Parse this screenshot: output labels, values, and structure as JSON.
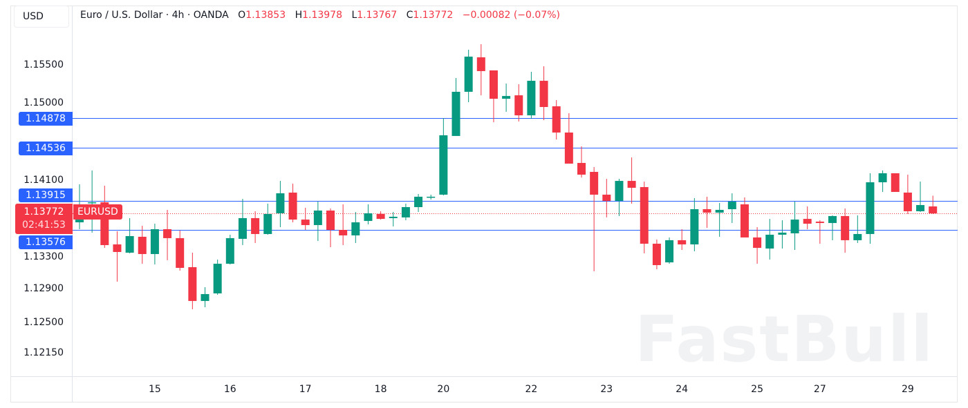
{
  "currency_button": "USD",
  "legend": {
    "symbol_desc": "Euro / U.S. Dollar · 4h · OANDA",
    "open_label": "O",
    "open": "1.13853",
    "high_label": "H",
    "high": "1.13978",
    "low_label": "L",
    "low": "1.13767",
    "close_label": "C",
    "close": "1.13772",
    "change": "−0.00082 (−0.07%)"
  },
  "price_axis": {
    "ticks": [
      "1.15500",
      "1.15000",
      "1.14100",
      "1.13300",
      "1.12900",
      "1.12500",
      "1.12150"
    ]
  },
  "horizontal_lines": [
    {
      "label": "1.14878",
      "price": 1.14878
    },
    {
      "label": "1.14536",
      "price": 1.14536
    },
    {
      "label": "1.13915",
      "price": 1.13915
    },
    {
      "label": "1.13576",
      "price": 1.13576
    }
  ],
  "current_price": {
    "label": "1.13772",
    "price": 1.13772,
    "countdown": "02:41:53",
    "symbol": "EURUSD"
  },
  "watermark": "FastBull",
  "colors": {
    "up": "#089981",
    "down": "#f23645",
    "line": "#2962ff",
    "text": "#131722"
  },
  "chart_data": {
    "type": "candlestick",
    "title": "Euro / U.S. Dollar · 4h · OANDA",
    "ylim": [
      1.118,
      1.1628
    ],
    "grid": false,
    "x_ticks": [
      {
        "label": "15",
        "candle": 6
      },
      {
        "label": "16",
        "candle": 12
      },
      {
        "label": "17",
        "candle": 18
      },
      {
        "label": "18",
        "candle": 24
      },
      {
        "label": "20",
        "candle": 29
      },
      {
        "label": "22",
        "candle": 36
      },
      {
        "label": "23",
        "candle": 42
      },
      {
        "label": "24",
        "candle": 48
      },
      {
        "label": "25",
        "candle": 54
      },
      {
        "label": "27",
        "candle": 59
      },
      {
        "label": "29",
        "candle": 66
      }
    ],
    "ohlc": [
      [
        1.13668,
        1.1411,
        1.13588,
        1.137
      ],
      [
        1.13893,
        1.14271,
        1.13548,
        1.13901
      ],
      [
        1.13901,
        1.14094,
        1.13371,
        1.13403
      ],
      [
        1.13411,
        1.13564,
        1.12978,
        1.13323
      ],
      [
        1.13315,
        1.13717,
        1.13307,
        1.13508
      ],
      [
        1.135,
        1.13628,
        1.13186,
        1.13299
      ],
      [
        1.13299,
        1.13652,
        1.13178,
        1.13588
      ],
      [
        1.13588,
        1.13813,
        1.13227,
        1.13484
      ],
      [
        1.13484,
        1.13572,
        1.13106,
        1.13138
      ],
      [
        1.13146,
        1.13315,
        1.12656,
        1.12753
      ],
      [
        1.12753,
        1.12913,
        1.1268,
        1.12833
      ],
      [
        1.12841,
        1.13235,
        1.12825,
        1.13186
      ],
      [
        1.13186,
        1.13524,
        1.13178,
        1.13484
      ],
      [
        1.13476,
        1.13941,
        1.13403,
        1.13717
      ],
      [
        1.13717,
        1.13797,
        1.13427,
        1.13532
      ],
      [
        1.13532,
        1.13885,
        1.13524,
        1.13765
      ],
      [
        1.13773,
        1.1415,
        1.13612,
        1.14006
      ],
      [
        1.14014,
        1.14118,
        1.13668,
        1.137
      ],
      [
        1.137,
        1.13837,
        1.1358,
        1.13636
      ],
      [
        1.13636,
        1.13909,
        1.13451,
        1.13805
      ],
      [
        1.13805,
        1.13829,
        1.13379,
        1.1358
      ],
      [
        1.1358,
        1.13877,
        1.13403,
        1.13516
      ],
      [
        1.13516,
        1.13789,
        1.13427,
        1.13668
      ],
      [
        1.13684,
        1.13877,
        1.13644,
        1.13773
      ],
      [
        1.13765,
        1.13797,
        1.137,
        1.13708
      ],
      [
        1.13717,
        1.13789,
        1.1362,
        1.13733
      ],
      [
        1.13725,
        1.13885,
        1.13692,
        1.13845
      ],
      [
        1.13845,
        1.13998,
        1.13789,
        1.13966
      ],
      [
        1.13958,
        1.1399,
        1.13933,
        1.13966
      ],
      [
        1.1399,
        1.14881,
        1.13982,
        1.14681
      ],
      [
        1.14673,
        1.15347,
        1.14673,
        1.15187
      ],
      [
        1.15187,
        1.15677,
        1.15066,
        1.15596
      ],
      [
        1.15588,
        1.15741,
        1.15146,
        1.15428
      ],
      [
        1.15436,
        1.15436,
        1.14833,
        1.15106
      ],
      [
        1.15106,
        1.15283,
        1.14954,
        1.15138
      ],
      [
        1.15146,
        1.15275,
        1.14841,
        1.14913
      ],
      [
        1.14913,
        1.1542,
        1.14873,
        1.15315
      ],
      [
        1.15315,
        1.15484,
        1.14857,
        1.1501
      ],
      [
        1.15018,
        1.1509,
        1.14632,
        1.14713
      ],
      [
        1.14713,
        1.14938,
        1.14351,
        1.14351
      ],
      [
        1.14359,
        1.14552,
        1.1419,
        1.14223
      ],
      [
        1.14255,
        1.14311,
        1.13098,
        1.1399
      ],
      [
        1.1399,
        1.14174,
        1.13725,
        1.13917
      ],
      [
        1.13917,
        1.14174,
        1.13741,
        1.1415
      ],
      [
        1.1415,
        1.14423,
        1.13885,
        1.1407
      ],
      [
        1.14078,
        1.14142,
        1.13307,
        1.13419
      ],
      [
        1.13419,
        1.13468,
        1.13122,
        1.1317
      ],
      [
        1.13202,
        1.13492,
        1.13186,
        1.1346
      ],
      [
        1.1346,
        1.13588,
        1.13347,
        1.13411
      ],
      [
        1.13411,
        1.1395,
        1.13331,
        1.13821
      ],
      [
        1.13821,
        1.13966,
        1.13604,
        1.13781
      ],
      [
        1.13781,
        1.13893,
        1.135,
        1.13813
      ],
      [
        1.13821,
        1.14006,
        1.1366,
        1.13909
      ],
      [
        1.13877,
        1.13958,
        1.13492,
        1.13492
      ],
      [
        1.13492,
        1.13612,
        1.13186,
        1.13371
      ],
      [
        1.13363,
        1.13708,
        1.13235,
        1.13524
      ],
      [
        1.13524,
        1.13692,
        1.13363,
        1.13548
      ],
      [
        1.1354,
        1.13909,
        1.13347,
        1.137
      ],
      [
        1.13708,
        1.13853,
        1.13588,
        1.13652
      ],
      [
        1.13676,
        1.13692,
        1.13419,
        1.1366
      ],
      [
        1.1366,
        1.13749,
        1.1346,
        1.13741
      ],
      [
        1.13741,
        1.13829,
        1.13315,
        1.1346
      ],
      [
        1.1346,
        1.13749,
        1.13427,
        1.13532
      ],
      [
        1.13532,
        1.14239,
        1.13419,
        1.14134
      ],
      [
        1.14134,
        1.14271,
        1.14022,
        1.14239
      ],
      [
        1.14239,
        1.14239,
        1.14022,
        1.14022
      ],
      [
        1.14014,
        1.14223,
        1.13765,
        1.13797
      ],
      [
        1.13797,
        1.14142,
        1.13789,
        1.13869
      ],
      [
        1.13853,
        1.13978,
        1.13767,
        1.13772
      ]
    ]
  }
}
